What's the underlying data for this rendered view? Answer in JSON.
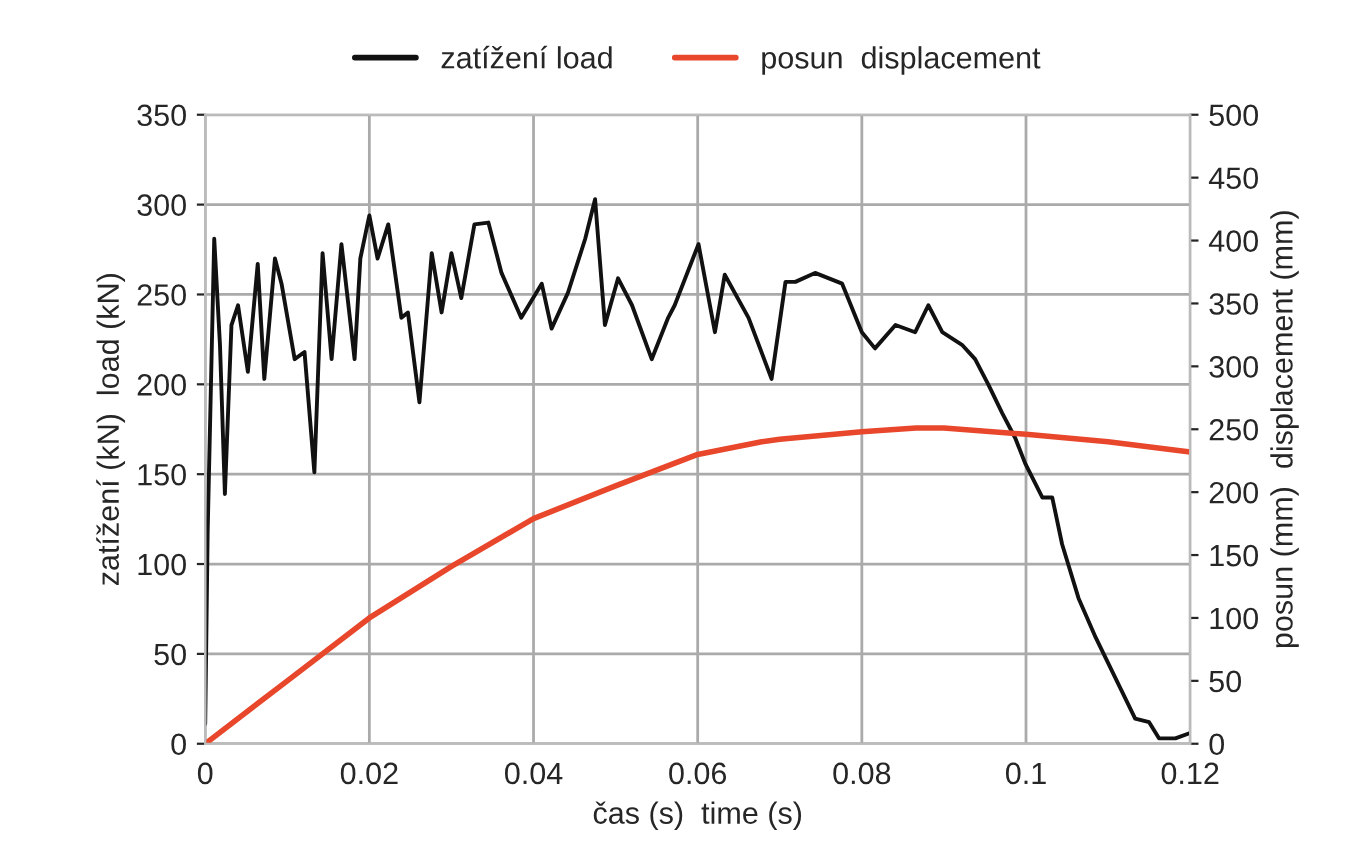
{
  "chart_data": {
    "type": "line",
    "xlabel": "čas (s)  time (s)",
    "ylabel": "zatížení (kN)  load (kN)",
    "y2label": "posun (mm)  displacement (mm)",
    "xlim": [
      0,
      0.12
    ],
    "xticks": [
      0,
      0.02,
      0.04,
      0.06,
      0.08,
      0.1,
      0.12
    ],
    "ylim": [
      0,
      350
    ],
    "yticks": [
      0,
      50,
      100,
      150,
      200,
      250,
      300,
      350
    ],
    "y2lim": [
      0,
      500
    ],
    "y2ticks": [
      0,
      50,
      100,
      150,
      200,
      250,
      300,
      350,
      400,
      450,
      500
    ],
    "grid": true,
    "legend": "top",
    "series": [
      {
        "name": "zatížení load",
        "color": "#111111",
        "x": [
          0,
          0.0003,
          0.0011,
          0.0018,
          0.0024,
          0.0032,
          0.004,
          0.0052,
          0.0064,
          0.0072,
          0.0085,
          0.0093,
          0.0109,
          0.0121,
          0.0133,
          0.0143,
          0.0154,
          0.0166,
          0.0182,
          0.0189,
          0.02,
          0.021,
          0.0223,
          0.0239,
          0.0247,
          0.0261,
          0.0276,
          0.0288,
          0.03,
          0.0312,
          0.0328,
          0.0345,
          0.0361,
          0.0385,
          0.041,
          0.0422,
          0.0442,
          0.0463,
          0.0475,
          0.0487,
          0.0503,
          0.052,
          0.0544,
          0.0564,
          0.0572,
          0.0601,
          0.0621,
          0.0633,
          0.0662,
          0.069,
          0.0707,
          0.0719,
          0.0743,
          0.0776,
          0.08,
          0.0816,
          0.0841,
          0.0865,
          0.0881,
          0.0898,
          0.0922,
          0.0938,
          0.0954,
          0.0971,
          0.0987,
          0.0999,
          0.102,
          0.1032,
          0.1044,
          0.1064,
          0.1085,
          0.1101,
          0.1117,
          0.1133,
          0.115,
          0.1162,
          0.1182,
          0.12
        ],
        "values": [
          11,
          118,
          281,
          222,
          139,
          233,
          244,
          207,
          267,
          203,
          270,
          256,
          214,
          218,
          151,
          273,
          214,
          278,
          214,
          270,
          294,
          270,
          289,
          237,
          240,
          190,
          273,
          240,
          273,
          248,
          289,
          290,
          262,
          237,
          256,
          231,
          251,
          281,
          303,
          233,
          259,
          244,
          214,
          237,
          244,
          278,
          229,
          261,
          237,
          203,
          257,
          257,
          262,
          256,
          229,
          220,
          233,
          229,
          244,
          229,
          222,
          214,
          200,
          184,
          170,
          156,
          137,
          137,
          111,
          81,
          59,
          44,
          29,
          14,
          12,
          3,
          3,
          6
        ]
      },
      {
        "name": "posun  displacement",
        "color": "#e8472b",
        "axis": "y2",
        "x": [
          0,
          0.01,
          0.02,
          0.03,
          0.04,
          0.05,
          0.06,
          0.0678,
          0.07,
          0.08,
          0.0866,
          0.09,
          0.1,
          0.11,
          0.12
        ],
        "values": [
          0,
          50,
          100,
          141,
          179,
          205,
          230,
          240,
          242,
          248,
          251,
          251,
          246,
          240,
          232
        ]
      }
    ]
  }
}
